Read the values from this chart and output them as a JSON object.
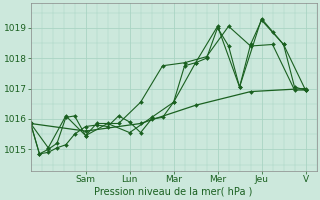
{
  "background_color": "#cce8dc",
  "grid_color": "#aad4c4",
  "line_color": "#1a6020",
  "ylabel": "Pression niveau de la mer( hPa )",
  "ylim": [
    1014.3,
    1019.8
  ],
  "yticks": [
    1015,
    1016,
    1017,
    1018,
    1019
  ],
  "day_labels": [
    "Sam",
    "Lun",
    "Mar",
    "Mer",
    "Jeu",
    "V"
  ],
  "day_positions": [
    2.5,
    4.5,
    6.5,
    8.5,
    10.5,
    12.5
  ],
  "series": [
    {
      "x": [
        0,
        0.4,
        0.8,
        1.2,
        1.6,
        2.0,
        2.5,
        3.0,
        3.5,
        4.0,
        4.5,
        5.0,
        5.5,
        6.0,
        6.5,
        7.0,
        7.5,
        8.0,
        8.5,
        9.0,
        9.5,
        10.0,
        10.5,
        11.0,
        11.5,
        12.0,
        12.5
      ],
      "y": [
        1015.85,
        1014.85,
        1014.9,
        1015.05,
        1015.15,
        1015.5,
        1015.75,
        1015.8,
        1015.75,
        1016.1,
        1015.9,
        1015.55,
        1016.0,
        1016.05,
        1016.55,
        1017.75,
        1017.85,
        1018.0,
        1019.0,
        1018.4,
        1017.05,
        1018.45,
        1019.25,
        1018.85,
        1018.45,
        1017.05,
        1016.95
      ]
    },
    {
      "x": [
        0,
        0.4,
        0.8,
        1.2,
        1.6,
        2.0,
        2.5,
        3.0,
        4.0,
        5.0,
        6.0,
        7.0,
        8.0,
        9.0,
        10.0,
        11.0,
        12.0,
        12.5
      ],
      "y": [
        1015.85,
        1014.85,
        1015.0,
        1015.2,
        1016.05,
        1016.1,
        1015.45,
        1015.85,
        1015.85,
        1016.55,
        1017.75,
        1017.85,
        1018.05,
        1019.05,
        1018.4,
        1018.45,
        1016.95,
        1016.95
      ]
    },
    {
      "x": [
        0,
        0.8,
        1.6,
        2.5,
        3.5,
        4.5,
        5.5,
        6.5,
        7.5,
        8.5,
        9.5,
        10.5,
        11.5,
        12.5
      ],
      "y": [
        1015.85,
        1015.05,
        1016.1,
        1015.45,
        1015.85,
        1015.55,
        1016.05,
        1016.55,
        1017.85,
        1019.05,
        1017.05,
        1019.3,
        1018.45,
        1016.95
      ]
    },
    {
      "x": [
        0,
        2.5,
        5.0,
        7.5,
        10.0,
        12.5
      ],
      "y": [
        1015.85,
        1015.6,
        1015.85,
        1016.45,
        1016.9,
        1017.0
      ]
    }
  ],
  "xlim": [
    0,
    13.0
  ],
  "title_fontsize": 7,
  "tick_fontsize": 6.5,
  "xlabel_fontsize": 7
}
